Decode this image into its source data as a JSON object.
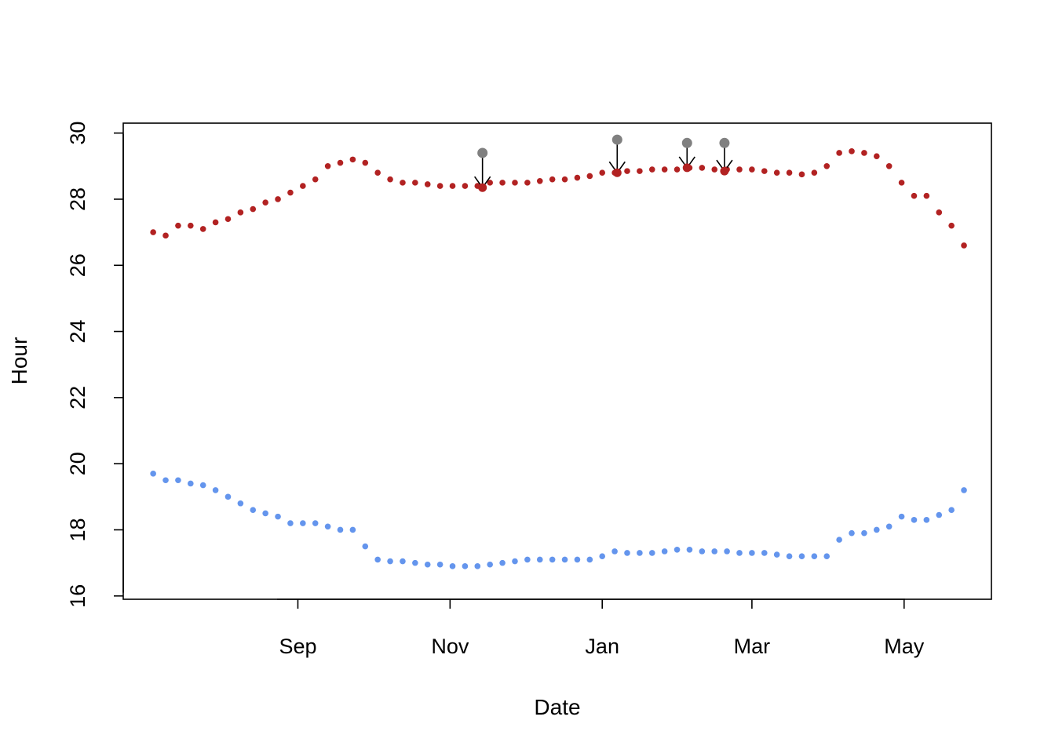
{
  "chart_data": {
    "type": "scatter",
    "xlabel": "Date",
    "ylabel": "Hour",
    "title": "",
    "xlim": [
      "2019-06-23",
      "2020-06-05"
    ],
    "ylim": [
      15.9,
      30.3
    ],
    "x_ticks": [
      {
        "date": "2019-09-01",
        "label": "Sep"
      },
      {
        "date": "2019-11-01",
        "label": "Nov"
      },
      {
        "date": "2020-01-01",
        "label": "Jan"
      },
      {
        "date": "2020-03-01",
        "label": "Mar"
      },
      {
        "date": "2020-05-01",
        "label": "May"
      }
    ],
    "y_ticks": [
      16,
      18,
      20,
      22,
      24,
      26,
      28,
      30
    ],
    "grid": false,
    "legend": "none",
    "series": [
      {
        "color": "#b22222",
        "points": [
          [
            "2019-07-05",
            27.0
          ],
          [
            "2019-07-10",
            26.9
          ],
          [
            "2019-07-15",
            27.2
          ],
          [
            "2019-07-20",
            27.2
          ],
          [
            "2019-07-25",
            27.1
          ],
          [
            "2019-07-30",
            27.3
          ],
          [
            "2019-08-04",
            27.4
          ],
          [
            "2019-08-09",
            27.6
          ],
          [
            "2019-08-14",
            27.7
          ],
          [
            "2019-08-19",
            27.9
          ],
          [
            "2019-08-24",
            28.0
          ],
          [
            "2019-08-29",
            28.2
          ],
          [
            "2019-09-03",
            28.4
          ],
          [
            "2019-09-08",
            28.6
          ],
          [
            "2019-09-13",
            29.0
          ],
          [
            "2019-09-18",
            29.1
          ],
          [
            "2019-09-23",
            29.2
          ],
          [
            "2019-09-28",
            29.1
          ],
          [
            "2019-10-03",
            28.8
          ],
          [
            "2019-10-08",
            28.6
          ],
          [
            "2019-10-13",
            28.5
          ],
          [
            "2019-10-18",
            28.5
          ],
          [
            "2019-10-23",
            28.45
          ],
          [
            "2019-10-28",
            28.4
          ],
          [
            "2019-11-02",
            28.4
          ],
          [
            "2019-11-07",
            28.4
          ],
          [
            "2019-11-12",
            28.4
          ],
          [
            "2019-11-17",
            28.5
          ],
          [
            "2019-11-22",
            28.5
          ],
          [
            "2019-11-27",
            28.5
          ],
          [
            "2019-12-02",
            28.5
          ],
          [
            "2019-12-07",
            28.55
          ],
          [
            "2019-12-12",
            28.6
          ],
          [
            "2019-12-17",
            28.6
          ],
          [
            "2019-12-22",
            28.65
          ],
          [
            "2019-12-27",
            28.7
          ],
          [
            "2020-01-01",
            28.8
          ],
          [
            "2020-01-06",
            28.8
          ],
          [
            "2020-01-11",
            28.85
          ],
          [
            "2020-01-16",
            28.85
          ],
          [
            "2020-01-21",
            28.9
          ],
          [
            "2020-01-26",
            28.9
          ],
          [
            "2020-01-31",
            28.9
          ],
          [
            "2020-02-05",
            28.95
          ],
          [
            "2020-02-10",
            28.95
          ],
          [
            "2020-02-15",
            28.9
          ],
          [
            "2020-02-20",
            28.9
          ],
          [
            "2020-02-25",
            28.9
          ],
          [
            "2020-03-01",
            28.9
          ],
          [
            "2020-03-06",
            28.85
          ],
          [
            "2020-03-11",
            28.8
          ],
          [
            "2020-03-16",
            28.8
          ],
          [
            "2020-03-21",
            28.75
          ],
          [
            "2020-03-26",
            28.8
          ],
          [
            "2020-03-31",
            29.0
          ],
          [
            "2020-04-05",
            29.4
          ],
          [
            "2020-04-10",
            29.45
          ],
          [
            "2020-04-15",
            29.4
          ],
          [
            "2020-04-20",
            29.3
          ],
          [
            "2020-04-25",
            29.0
          ],
          [
            "2020-04-30",
            28.5
          ],
          [
            "2020-05-05",
            28.1
          ],
          [
            "2020-05-10",
            28.1
          ],
          [
            "2020-05-15",
            27.6
          ],
          [
            "2020-05-20",
            27.2
          ],
          [
            "2020-05-25",
            26.6
          ]
        ]
      },
      {
        "color": "#6495ed",
        "points": [
          [
            "2019-07-05",
            19.7
          ],
          [
            "2019-07-10",
            19.5
          ],
          [
            "2019-07-15",
            19.5
          ],
          [
            "2019-07-20",
            19.4
          ],
          [
            "2019-07-25",
            19.35
          ],
          [
            "2019-07-30",
            19.2
          ],
          [
            "2019-08-04",
            19.0
          ],
          [
            "2019-08-09",
            18.8
          ],
          [
            "2019-08-14",
            18.6
          ],
          [
            "2019-08-19",
            18.5
          ],
          [
            "2019-08-24",
            18.4
          ],
          [
            "2019-08-29",
            18.2
          ],
          [
            "2019-09-03",
            18.2
          ],
          [
            "2019-09-08",
            18.2
          ],
          [
            "2019-09-13",
            18.1
          ],
          [
            "2019-09-18",
            18.0
          ],
          [
            "2019-09-23",
            18.0
          ],
          [
            "2019-09-28",
            17.5
          ],
          [
            "2019-10-03",
            17.1
          ],
          [
            "2019-10-08",
            17.05
          ],
          [
            "2019-10-13",
            17.05
          ],
          [
            "2019-10-18",
            17.0
          ],
          [
            "2019-10-23",
            16.95
          ],
          [
            "2019-10-28",
            16.95
          ],
          [
            "2019-11-02",
            16.9
          ],
          [
            "2019-11-07",
            16.9
          ],
          [
            "2019-11-12",
            16.9
          ],
          [
            "2019-11-17",
            16.95
          ],
          [
            "2019-11-22",
            17.0
          ],
          [
            "2019-11-27",
            17.05
          ],
          [
            "2019-12-02",
            17.1
          ],
          [
            "2019-12-07",
            17.1
          ],
          [
            "2019-12-12",
            17.1
          ],
          [
            "2019-12-17",
            17.1
          ],
          [
            "2019-12-22",
            17.1
          ],
          [
            "2019-12-27",
            17.1
          ],
          [
            "2020-01-01",
            17.2
          ],
          [
            "2020-01-06",
            17.35
          ],
          [
            "2020-01-11",
            17.3
          ],
          [
            "2020-01-16",
            17.3
          ],
          [
            "2020-01-21",
            17.3
          ],
          [
            "2020-01-26",
            17.35
          ],
          [
            "2020-01-31",
            17.4
          ],
          [
            "2020-02-05",
            17.4
          ],
          [
            "2020-02-10",
            17.35
          ],
          [
            "2020-02-15",
            17.35
          ],
          [
            "2020-02-20",
            17.35
          ],
          [
            "2020-02-25",
            17.3
          ],
          [
            "2020-03-01",
            17.3
          ],
          [
            "2020-03-06",
            17.3
          ],
          [
            "2020-03-11",
            17.25
          ],
          [
            "2020-03-16",
            17.2
          ],
          [
            "2020-03-21",
            17.2
          ],
          [
            "2020-03-26",
            17.2
          ],
          [
            "2020-03-31",
            17.2
          ],
          [
            "2020-04-05",
            17.7
          ],
          [
            "2020-04-10",
            17.9
          ],
          [
            "2020-04-15",
            17.9
          ],
          [
            "2020-04-20",
            18.0
          ],
          [
            "2020-04-25",
            18.1
          ],
          [
            "2020-04-30",
            18.4
          ],
          [
            "2020-05-05",
            18.3
          ],
          [
            "2020-05-10",
            18.3
          ],
          [
            "2020-05-15",
            18.45
          ],
          [
            "2020-05-20",
            18.6
          ],
          [
            "2020-05-25",
            19.2
          ]
        ]
      }
    ],
    "annotations": [
      {
        "date": "2019-11-14",
        "y_from": 29.4,
        "y_to": 28.35,
        "marker_color": "#808080"
      },
      {
        "date": "2020-01-07",
        "y_from": 29.8,
        "y_to": 28.8,
        "marker_color": "#808080"
      },
      {
        "date": "2020-02-04",
        "y_from": 29.7,
        "y_to": 28.95,
        "marker_color": "#808080"
      },
      {
        "date": "2020-02-19",
        "y_from": 29.7,
        "y_to": 28.85,
        "marker_color": "#808080"
      }
    ]
  }
}
